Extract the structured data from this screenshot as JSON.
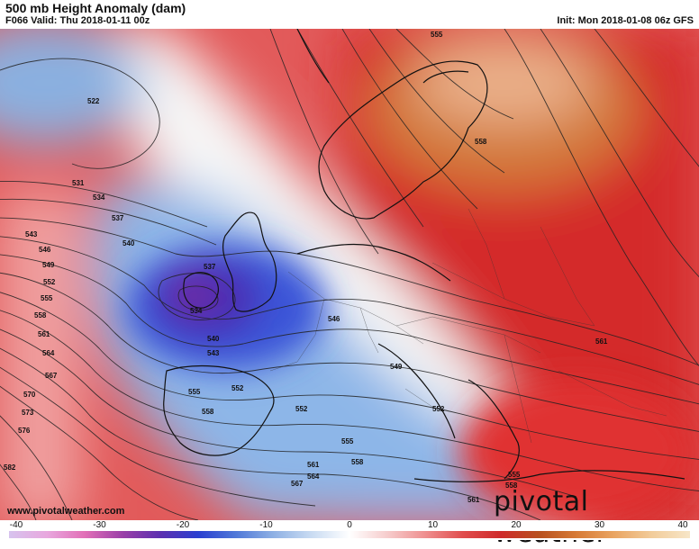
{
  "header": {
    "title": "500 mb Height Anomaly (dam)",
    "valid": "F066 Valid: Thu 2018-01-11 00z",
    "init": "Init: Mon 2018-01-08 06z GFS"
  },
  "footer": {
    "url": "www.pivotalweather.com",
    "brand": "pivotal weather"
  },
  "colorbar": {
    "ticks": [
      "-40",
      "-30",
      "-20",
      "-10",
      "0",
      "10",
      "20",
      "30",
      "40"
    ],
    "colors": [
      "#d7c3ee",
      "#e8a7de",
      "#e26fb7",
      "#9a3fa8",
      "#5c2fb0",
      "#2a3fd0",
      "#4f78d8",
      "#8fb1e4",
      "#c9dbf2",
      "#ffffff",
      "#f6cccc",
      "#ef8f8f",
      "#e04c4c",
      "#cf2a2a",
      "#b8501e",
      "#d77a35",
      "#eaa562",
      "#f2cc9a",
      "#f7e6c8"
    ]
  },
  "contour_labels": [
    "555",
    "522",
    "558",
    "531",
    "534",
    "537",
    "540",
    "543",
    "546",
    "549",
    "552",
    "555",
    "558",
    "561",
    "564",
    "567",
    "570",
    "573",
    "576",
    "582",
    "537",
    "534",
    "540",
    "543",
    "546",
    "549",
    "552",
    "555",
    "558",
    "552",
    "552",
    "561",
    "564",
    "567",
    "558",
    "555",
    "555",
    "558",
    "561",
    "561"
  ]
}
